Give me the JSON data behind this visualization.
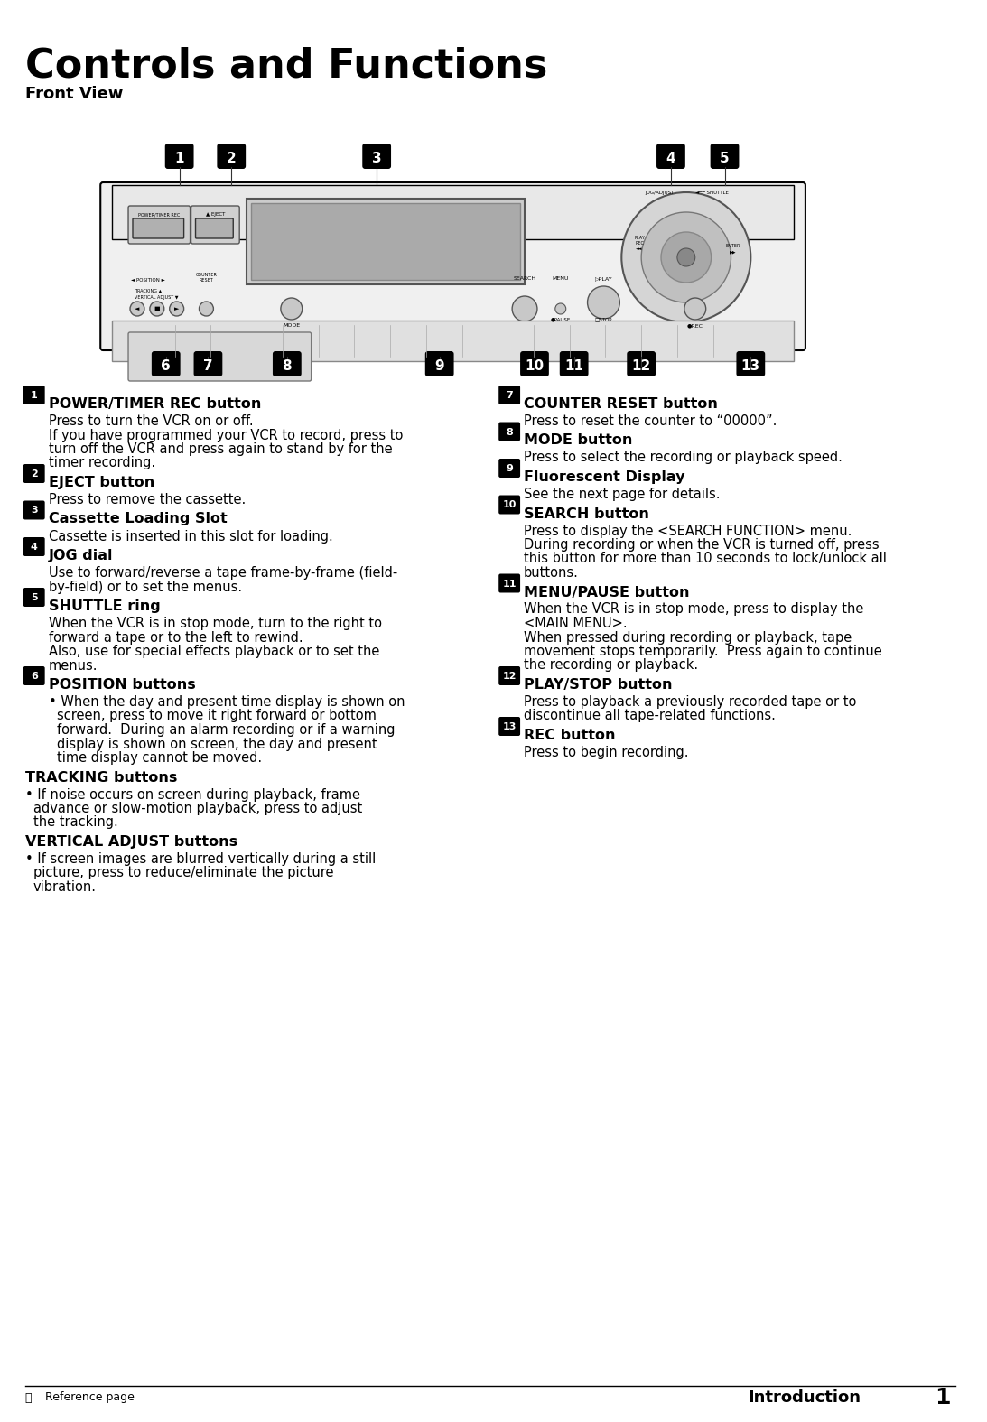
{
  "title": "Controls and Functions",
  "subtitle": "Front View",
  "bg_color": "#ffffff",
  "title_fontsize": 32,
  "subtitle_fontsize": 13,
  "page_label": "Introduction",
  "page_number": "1",
  "ref_page": "Reference page",
  "left_column": [
    {
      "num": "1",
      "heading": "POWER/TIMER REC button",
      "body": "Press to turn the VCR on or off.\nIf you have programmed your VCR to record, press to\nturn off the VCR and press again to stand by for the\ntimer recording."
    },
    {
      "num": "2",
      "heading": "EJECT button",
      "body": "Press to remove the cassette."
    },
    {
      "num": "3",
      "heading": "Cassette Loading Slot",
      "body": "Cassette is inserted in this slot for loading."
    },
    {
      "num": "4",
      "heading": "JOG dial",
      "body": "Use to forward/reverse a tape frame-by-frame (field-\nby-field) or to set the menus."
    },
    {
      "num": "5",
      "heading": "SHUTTLE ring",
      "body": "When the VCR is in stop mode, turn to the right to\nforward a tape or to the left to rewind.\nAlso, use for special effects playback or to set the\nmenus."
    },
    {
      "num": "6",
      "heading": "POSITION buttons",
      "bullet": "When the day and present time display is shown on\nscreen, press to move it right forward or bottom\nforward.  During an alarm recording or if a warning\ndisplay is shown on screen, the day and present\ntime display cannot be moved."
    },
    {
      "num": "",
      "heading": "TRACKING buttons",
      "bullet": "If noise occurs on screen during playback, frame\nadvance or slow-motion playback, press to adjust\nthe tracking."
    },
    {
      "num": "",
      "heading": "VERTICAL ADJUST buttons",
      "bullet": "If screen images are blurred vertically during a still\npicture, press to reduce/eliminate the picture\nvibration."
    }
  ],
  "right_column": [
    {
      "num": "7",
      "heading": "COUNTER RESET button",
      "body": "Press to reset the counter to “00000”."
    },
    {
      "num": "8",
      "heading": "MODE button",
      "body": "Press to select the recording or playback speed."
    },
    {
      "num": "9",
      "heading": "Fluorescent Display",
      "body": "See the next page for details."
    },
    {
      "num": "10",
      "heading": "SEARCH button",
      "body": "Press to display the <SEARCH FUNCTION> menu.\nDuring recording or when the VCR is turned off, press\nthis button for more than 10 seconds to lock/unlock all\nbuttons."
    },
    {
      "num": "11",
      "heading": "MENU/PAUSE button",
      "body": "When the VCR is in stop mode, press to display the\n<MAIN MENU>.\nWhen pressed during recording or playback, tape\nmovement stops temporarily.  Press again to continue\nthe recording or playback."
    },
    {
      "num": "12",
      "heading": "PLAY/STOP button",
      "body": "Press to playback a previously recorded tape or to\ndiscontinue all tape-related functions."
    },
    {
      "num": "13",
      "heading": "REC button",
      "body": "Press to begin recording."
    }
  ]
}
